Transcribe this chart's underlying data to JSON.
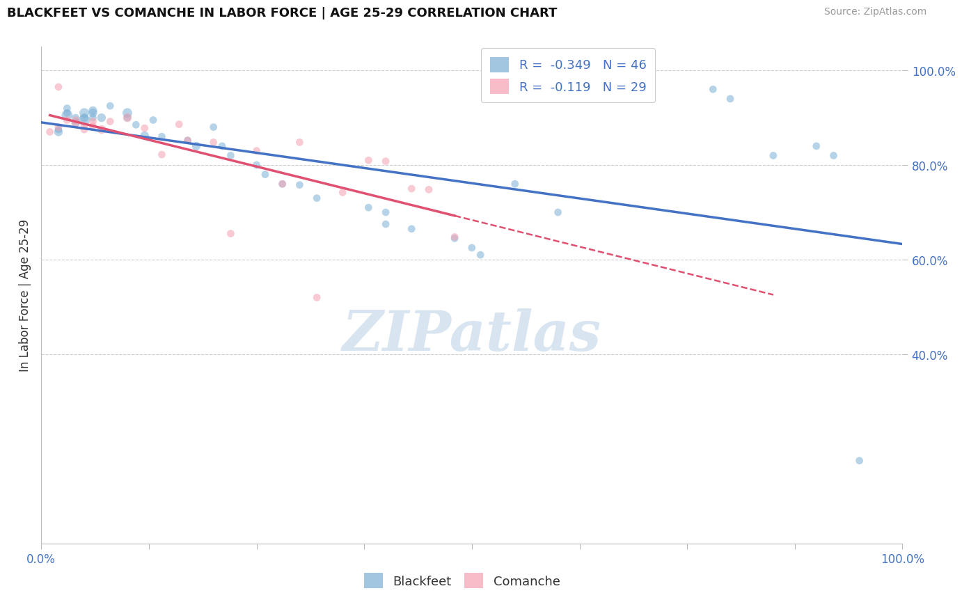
{
  "title": "BLACKFEET VS COMANCHE IN LABOR FORCE | AGE 25-29 CORRELATION CHART",
  "source": "Source: ZipAtlas.com",
  "ylabel": "In Labor Force | Age 25-29",
  "blue_R": "-0.349",
  "blue_N": "46",
  "pink_R": "-0.119",
  "pink_N": "29",
  "blue_color": "#7BAFD4",
  "pink_color": "#F4A0B0",
  "blue_line_color": "#4472C4",
  "pink_line_color": "#E05070",
  "watermark_color": "#D8E4F0",
  "background_color": "#FFFFFF",
  "tick_color": "#4472C4",
  "grid_color": "#CCCCCC",
  "blue_x": [
    0.02,
    0.02,
    0.03,
    0.03,
    0.03,
    0.04,
    0.04,
    0.05,
    0.05,
    0.05,
    0.06,
    0.06,
    0.06,
    0.07,
    0.08,
    0.1,
    0.1,
    0.11,
    0.12,
    0.13,
    0.14,
    0.17,
    0.18,
    0.2,
    0.21,
    0.22,
    0.25,
    0.26,
    0.28,
    0.3,
    0.32,
    0.38,
    0.4,
    0.4,
    0.43,
    0.48,
    0.5,
    0.51,
    0.55,
    0.6,
    0.78,
    0.8,
    0.85,
    0.9,
    0.92,
    0.95
  ],
  "blue_y": [
    0.875,
    0.87,
    0.91,
    0.92,
    0.905,
    0.9,
    0.89,
    0.91,
    0.9,
    0.895,
    0.915,
    0.91,
    0.9,
    0.9,
    0.925,
    0.9,
    0.91,
    0.885,
    0.862,
    0.895,
    0.86,
    0.852,
    0.84,
    0.88,
    0.84,
    0.82,
    0.8,
    0.78,
    0.76,
    0.758,
    0.73,
    0.71,
    0.7,
    0.675,
    0.665,
    0.645,
    0.625,
    0.61,
    0.76,
    0.7,
    0.96,
    0.94,
    0.82,
    0.84,
    0.82,
    0.175
  ],
  "blue_sizes": [
    60,
    80,
    60,
    60,
    130,
    60,
    80,
    100,
    80,
    130,
    80,
    80,
    60,
    80,
    60,
    60,
    100,
    60,
    80,
    60,
    60,
    60,
    80,
    60,
    60,
    60,
    60,
    60,
    60,
    60,
    60,
    60,
    60,
    60,
    60,
    60,
    60,
    60,
    60,
    60,
    60,
    60,
    60,
    60,
    60,
    60
  ],
  "pink_x": [
    0.01,
    0.02,
    0.02,
    0.03,
    0.04,
    0.04,
    0.05,
    0.05,
    0.06,
    0.06,
    0.07,
    0.08,
    0.1,
    0.12,
    0.14,
    0.16,
    0.17,
    0.2,
    0.22,
    0.25,
    0.28,
    0.3,
    0.32,
    0.35,
    0.38,
    0.4,
    0.43,
    0.45,
    0.48
  ],
  "pink_y": [
    0.87,
    0.965,
    0.88,
    0.895,
    0.895,
    0.888,
    0.882,
    0.875,
    0.892,
    0.882,
    0.875,
    0.892,
    0.9,
    0.878,
    0.822,
    0.886,
    0.852,
    0.848,
    0.655,
    0.83,
    0.76,
    0.848,
    0.52,
    0.742,
    0.81,
    0.808,
    0.75,
    0.748,
    0.648
  ],
  "pink_sizes": [
    60,
    60,
    60,
    60,
    60,
    60,
    60,
    60,
    60,
    60,
    80,
    60,
    80,
    60,
    60,
    60,
    60,
    60,
    60,
    60,
    60,
    60,
    60,
    60,
    60,
    60,
    60,
    60,
    60
  ],
  "xlim": [
    0.0,
    1.0
  ],
  "ylim": [
    0.0,
    1.05
  ],
  "yticks": [
    0.4,
    0.6,
    0.8,
    1.0
  ],
  "ytick_labels": [
    "40.0%",
    "60.0%",
    "80.0%",
    "100.0%"
  ],
  "xtick_positions": [
    0.0,
    0.125,
    0.25,
    0.375,
    0.5,
    0.625,
    0.75,
    0.875,
    1.0
  ],
  "xtick_labels_show": [
    "0.0%",
    "",
    "",
    "",
    "",
    "",
    "",
    "",
    "100.0%"
  ]
}
